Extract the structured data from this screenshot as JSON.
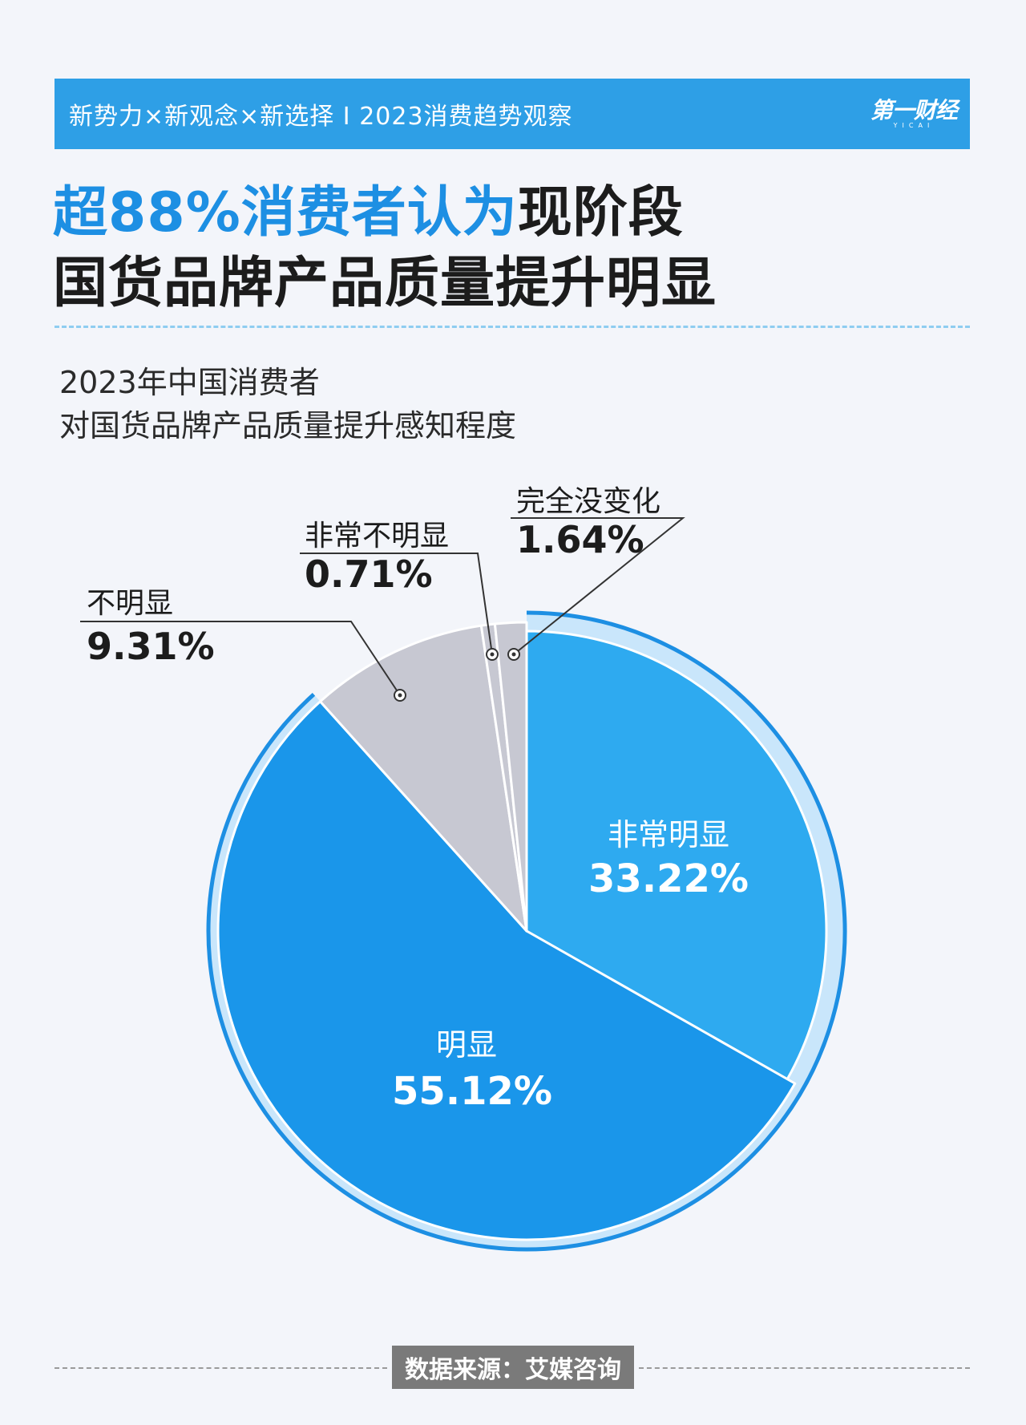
{
  "banner": {
    "title": "新势力×新观念×新选择 I 2023消费趋势观察",
    "logo": "第一财经",
    "logo_sub": "YICAI"
  },
  "headline": {
    "highlight": "超88%消费者认为",
    "rest_line1": "现阶段",
    "line2": "国货品牌产品质量提升明显"
  },
  "chart_data": {
    "type": "pie",
    "title_line1": "2023年中国消费者",
    "title_line2": "对国货品牌产品质量提升感知程度",
    "slices": [
      {
        "label": "非常明显",
        "value": 33.22,
        "display": "33.22%",
        "color": "#2eaaf0"
      },
      {
        "label": "明显",
        "value": 55.12,
        "display": "55.12%",
        "color": "#1a96ea"
      },
      {
        "label": "不明显",
        "value": 9.31,
        "display": "9.31%",
        "color": "#c7c8d2"
      },
      {
        "label": "非常不明显",
        "value": 0.71,
        "display": "0.71%",
        "color": "#c7c8d2"
      },
      {
        "label": "完全没变化",
        "value": 1.64,
        "display": "1.64%",
        "color": "#c7c8d2"
      }
    ],
    "ring_color": "#c9e6fb",
    "outline_color": "#1d8fe3"
  },
  "source": "数据来源：艾媒咨询"
}
